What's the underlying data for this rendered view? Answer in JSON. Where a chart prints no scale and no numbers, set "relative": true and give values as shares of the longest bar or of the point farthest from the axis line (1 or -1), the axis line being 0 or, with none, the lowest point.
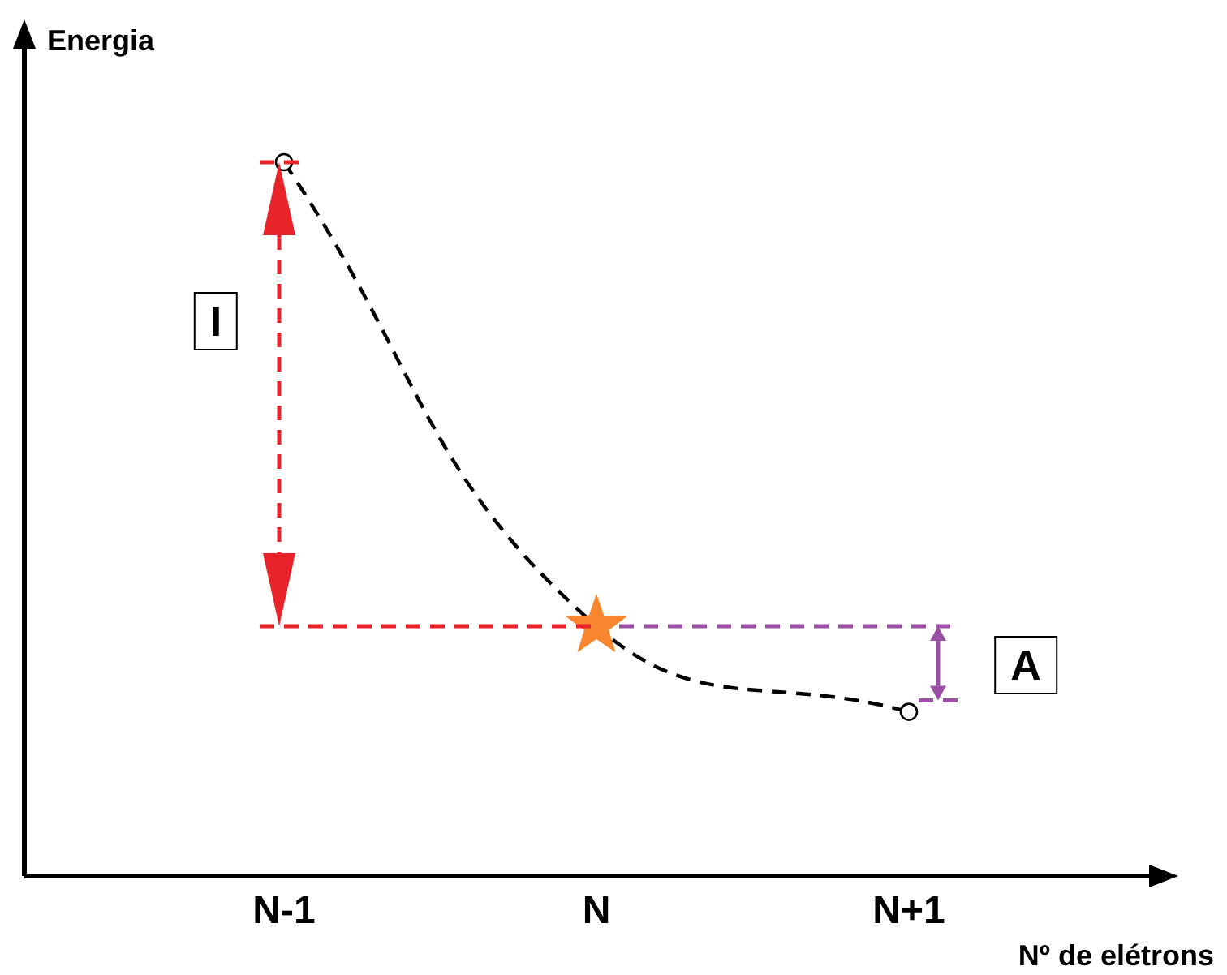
{
  "chart_data": {
    "type": "line",
    "relative": true,
    "xlabel": "Nº de elétrons",
    "ylabel": "Energia",
    "categories": [
      "N-1",
      "N",
      "N+1"
    ],
    "grid": false,
    "legend": false,
    "series": [
      {
        "color": "#000000",
        "line_style": "dashed",
        "marker": "circle",
        "values": [
          1,
          0.35,
          0.23
        ]
      },
      {
        "type": "scatter",
        "color": "#f7862f",
        "marker": "star",
        "x": [
          "N"
        ],
        "values": [
          0.35
        ]
      }
    ],
    "annotations": [
      "I",
      "A"
    ]
  }
}
